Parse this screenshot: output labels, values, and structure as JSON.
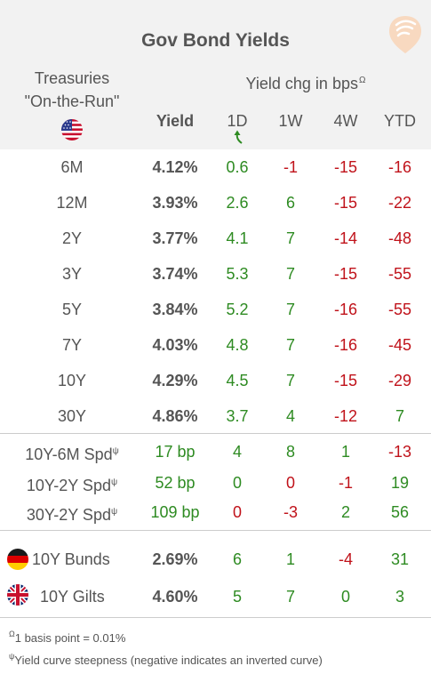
{
  "title": "Gov Bond Yields",
  "treasuries_label_1": "Treasuries",
  "treasuries_label_2": "\"On-the-Run\"",
  "yield_chg_label": "Yield chg in bps",
  "yield_chg_mark": "Ω",
  "col_yield": "Yield",
  "cols": [
    "1D",
    "1W",
    "4W",
    "YTD"
  ],
  "treasuries": [
    {
      "label": "6M",
      "yield": "4.12%",
      "d1": "0.6",
      "w1": "-1",
      "w4": "-15",
      "ytd": "-16"
    },
    {
      "label": "12M",
      "yield": "3.93%",
      "d1": "2.6",
      "w1": "6",
      "w4": "-15",
      "ytd": "-22"
    },
    {
      "label": "2Y",
      "yield": "3.77%",
      "d1": "4.1",
      "w1": "7",
      "w4": "-14",
      "ytd": "-48"
    },
    {
      "label": "3Y",
      "yield": "3.74%",
      "d1": "5.3",
      "w1": "7",
      "w4": "-15",
      "ytd": "-55"
    },
    {
      "label": "5Y",
      "yield": "3.84%",
      "d1": "5.2",
      "w1": "7",
      "w4": "-16",
      "ytd": "-55"
    },
    {
      "label": "7Y",
      "yield": "4.03%",
      "d1": "4.8",
      "w1": "7",
      "w4": "-16",
      "ytd": "-45"
    },
    {
      "label": "10Y",
      "yield": "4.29%",
      "d1": "4.5",
      "w1": "7",
      "w4": "-15",
      "ytd": "-29"
    },
    {
      "label": "30Y",
      "yield": "4.86%",
      "d1": "3.7",
      "w1": "4",
      "w4": "-12",
      "ytd": "7"
    }
  ],
  "spreads": [
    {
      "label": "10Y-6M Spd",
      "mark": "ψ",
      "value": "17 bp",
      "d1": "4",
      "w1": "8",
      "w4": "1",
      "ytd": "-13"
    },
    {
      "label": "10Y-2Y Spd",
      "mark": "ψ",
      "value": "52 bp",
      "d1": "0",
      "w1": "0",
      "w4": "-1",
      "ytd": "19"
    },
    {
      "label": "30Y-2Y Spd",
      "mark": "ψ",
      "value": "109 bp",
      "d1": "0",
      "w1": "-3",
      "w4": "2",
      "ytd": "56"
    }
  ],
  "intl": [
    {
      "label": "10Y Bunds",
      "flag": "germany-flag-icon",
      "yield": "2.69%",
      "d1": "6",
      "w1": "1",
      "w4": "-4",
      "ytd": "31"
    },
    {
      "label": "10Y Gilts",
      "flag": "uk-flag-icon",
      "yield": "4.60%",
      "d1": "5",
      "w1": "7",
      "w4": "0",
      "ytd": "3"
    }
  ],
  "footnote_1_mark": "Ω",
  "footnote_1": "1 basis point = 0.01%",
  "footnote_2_mark": "ψ",
  "footnote_2": "Yield curve steepness (negative indicates an inverted curve)",
  "colors": {
    "positive": "#2e8b22",
    "negative": "#c0121a",
    "header_bg": "#f2f2f2",
    "text": "#555555",
    "logo": "#f5c9a6"
  }
}
